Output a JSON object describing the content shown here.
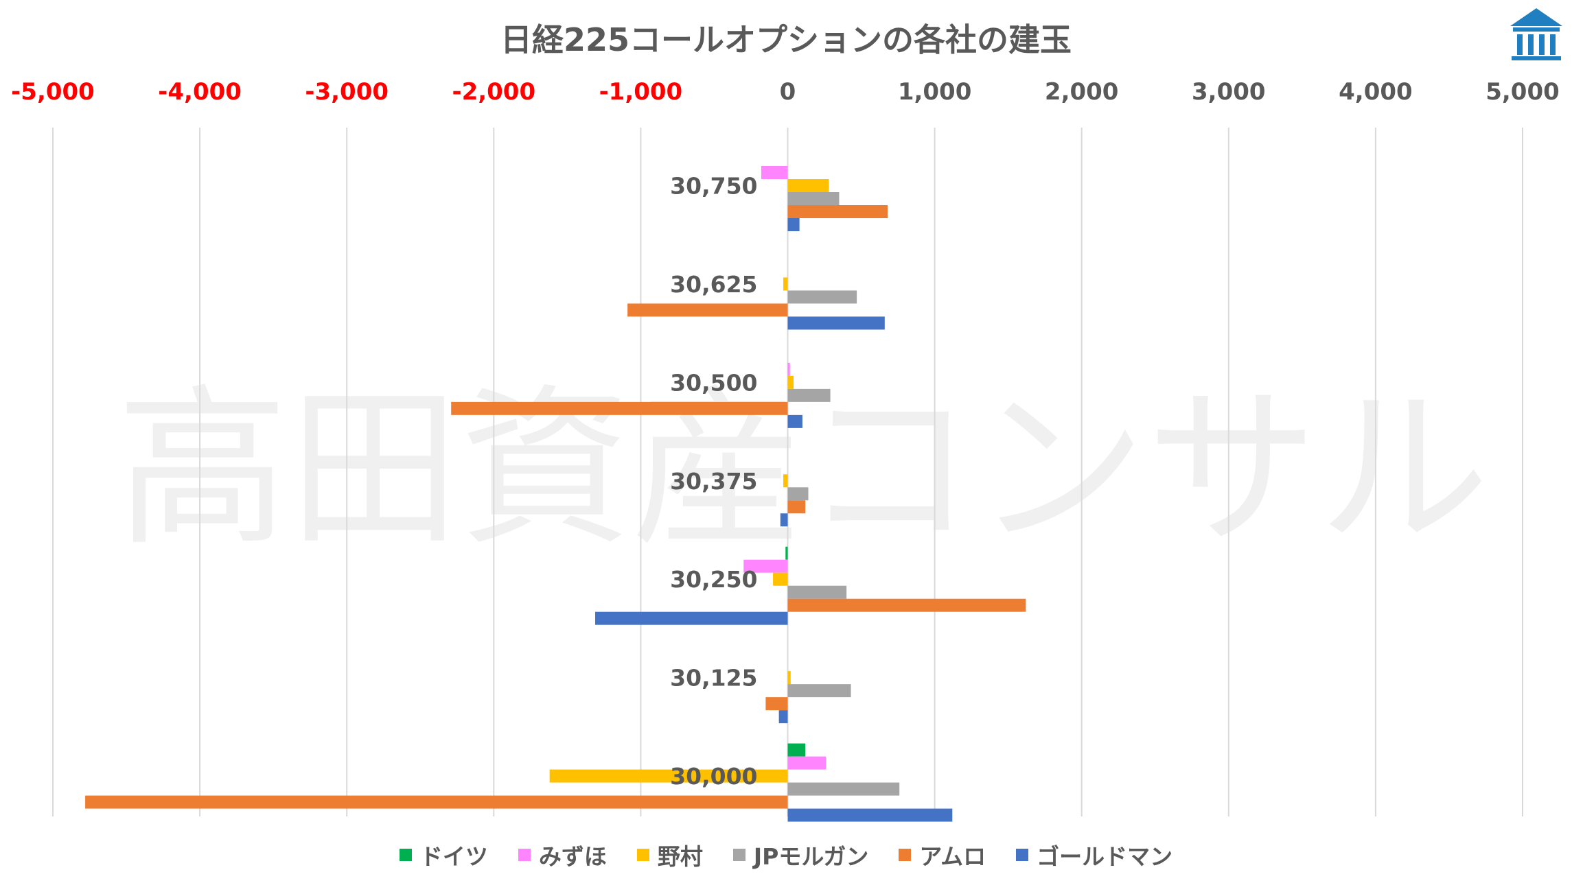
{
  "chart_data": {
    "type": "bar",
    "orientation": "horizontal",
    "title": "日経225コールオプションの各社の建玉",
    "xlim": [
      -5000,
      5000
    ],
    "x_ticks": [
      "-5,000",
      "-4,000",
      "-3,000",
      "-2,000",
      "-1,000",
      "0",
      "1,000",
      "2,000",
      "3,000",
      "4,000",
      "5,000"
    ],
    "negative_tick_color": "#ff0000",
    "positive_tick_color": "#595959",
    "grid": "vertical",
    "legend_position": "bottom",
    "categories": [
      "30,750",
      "30,625",
      "30,500",
      "30,375",
      "30,250",
      "30,125",
      "30,000"
    ],
    "series": [
      {
        "name": "ドイツ",
        "color": "#00b050",
        "values": [
          0,
          0,
          0,
          0,
          -15,
          0,
          120
        ]
      },
      {
        "name": "みずほ",
        "color": "#ff85ff",
        "values": [
          -180,
          0,
          15,
          0,
          -300,
          0,
          260
        ]
      },
      {
        "name": "野村",
        "color": "#ffc000",
        "values": [
          280,
          -30,
          40,
          -30,
          -100,
          20,
          -1620
        ]
      },
      {
        "name": "JPモルガン",
        "color": "#a5a5a5",
        "values": [
          350,
          470,
          290,
          140,
          400,
          430,
          760
        ]
      },
      {
        "name": "アムロ",
        "color": "#ed7d31",
        "values": [
          680,
          -1090,
          -2290,
          120,
          1620,
          -150,
          -4780
        ]
      },
      {
        "name": "ゴールドマン",
        "color": "#4472c4",
        "values": [
          80,
          660,
          100,
          -50,
          -1310,
          -60,
          1120
        ]
      }
    ]
  },
  "watermark": "高田資産コンサル",
  "logo": {
    "name": "building-logo",
    "color": "#1f7fc0"
  }
}
